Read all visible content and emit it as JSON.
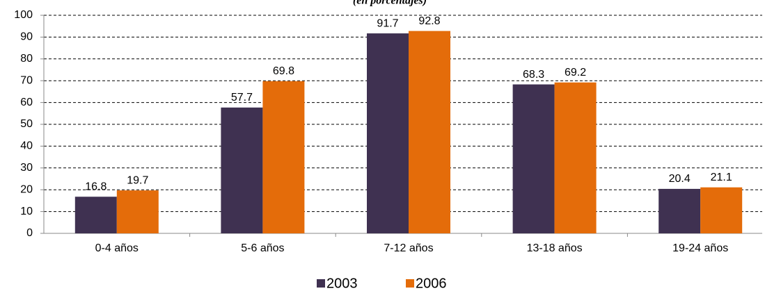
{
  "chart_data": {
    "type": "bar",
    "subtitle": "(en porcentajes)",
    "categories": [
      "0-4 años",
      "5-6 años",
      "7-12 años",
      "13-18 años",
      "19-24 años"
    ],
    "series": [
      {
        "name": "2003",
        "color": "#3f3151",
        "values": [
          16.8,
          57.7,
          91.7,
          68.3,
          20.4
        ]
      },
      {
        "name": "2006",
        "color": "#e46c0a",
        "values": [
          19.7,
          69.8,
          92.8,
          69.2,
          21.1
        ]
      }
    ],
    "ylim": [
      0,
      100
    ],
    "yticks": [
      0,
      10,
      20,
      30,
      40,
      50,
      60,
      70,
      80,
      90,
      100
    ],
    "grid": true
  }
}
